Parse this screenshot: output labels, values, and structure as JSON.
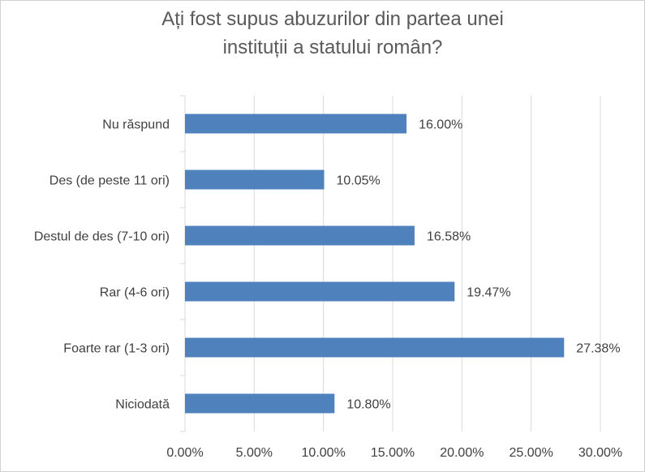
{
  "chart_data": {
    "type": "bar",
    "orientation": "horizontal",
    "title_line1": "Ați fost supus abuzurilor din partea unei",
    "title_line2": "instituții a statului român?",
    "categories": [
      "Nu răspund",
      "Des (de peste 11 ori)",
      "Destul de des (7-10 ori)",
      "Rar (4-6 ori)",
      "Foarte rar (1-3 ori)",
      "Niciodată"
    ],
    "values": [
      16.0,
      10.05,
      16.58,
      19.47,
      27.38,
      10.8
    ],
    "value_labels": [
      "16.00%",
      "10.05%",
      "16.58%",
      "19.47%",
      "27.38%",
      "10.80%"
    ],
    "xlim": [
      0,
      30
    ],
    "x_ticks": [
      0,
      5,
      10,
      15,
      20,
      25,
      30
    ],
    "x_tick_labels": [
      "0.00%",
      "5.00%",
      "10.00%",
      "15.00%",
      "20.00%",
      "25.00%",
      "30.00%"
    ],
    "grid": true,
    "bar_color": "#4f81bd"
  }
}
